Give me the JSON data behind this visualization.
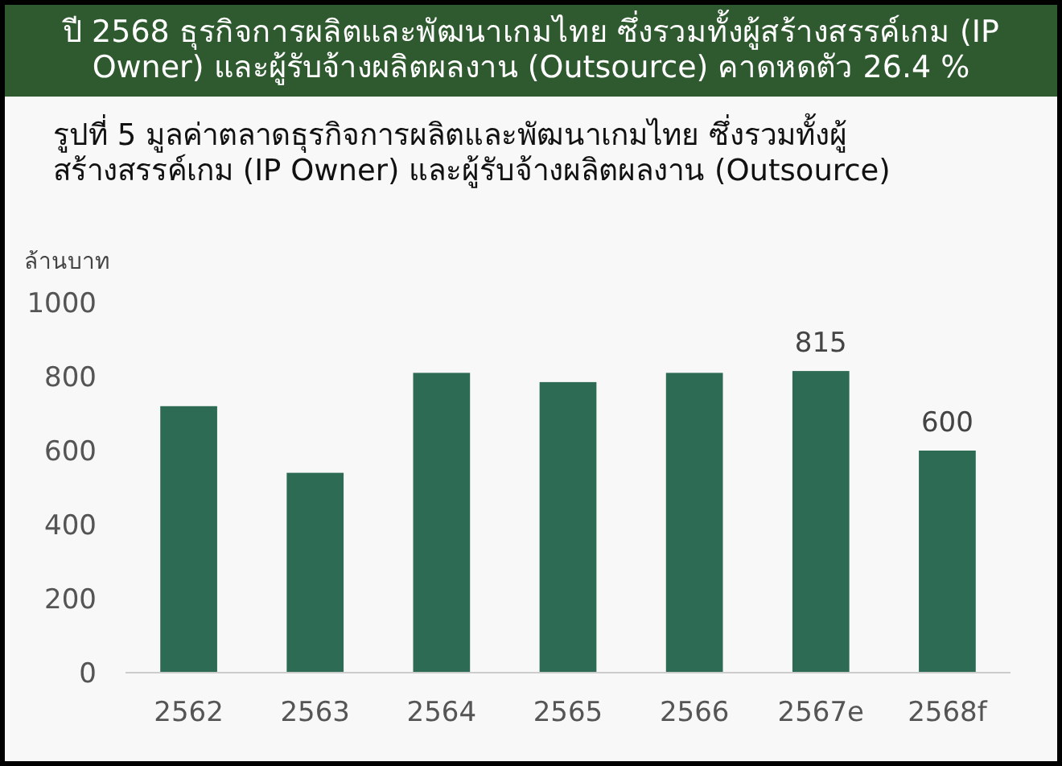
{
  "chart_data": {
    "type": "bar",
    "title": "ปี 2568 ธุรกิจการผลิตและพัฒนาเกมไทย ซึ่งรวมทั้งผู้สร้างสรรค์เกม (IP Owner) และผู้รับจ้างผลิตผลงาน (Outsource) คาดหดตัว 26.4 %",
    "subtitle": "รูปที่ 5  มูลค่าตลาดธุรกิจการผลิตและพัฒนาเกมไทย ซึ่งรวมทั้งผู้สร้างสรรค์เกม (IP Owner) และผู้รับจ้างผลิตผลงาน (Outsource)",
    "ylabel": "ล้านบาท",
    "categories": [
      "2562",
      "2563",
      "2564",
      "2565",
      "2566",
      "2567e",
      "2568f"
    ],
    "values": [
      720,
      540,
      810,
      785,
      810,
      815,
      600
    ],
    "value_labels": [
      null,
      null,
      null,
      null,
      null,
      "815",
      "600"
    ],
    "color": "#2e6b55",
    "ylim": [
      0,
      1000
    ],
    "yticks": [
      0,
      200,
      400,
      600,
      800,
      1000
    ]
  }
}
